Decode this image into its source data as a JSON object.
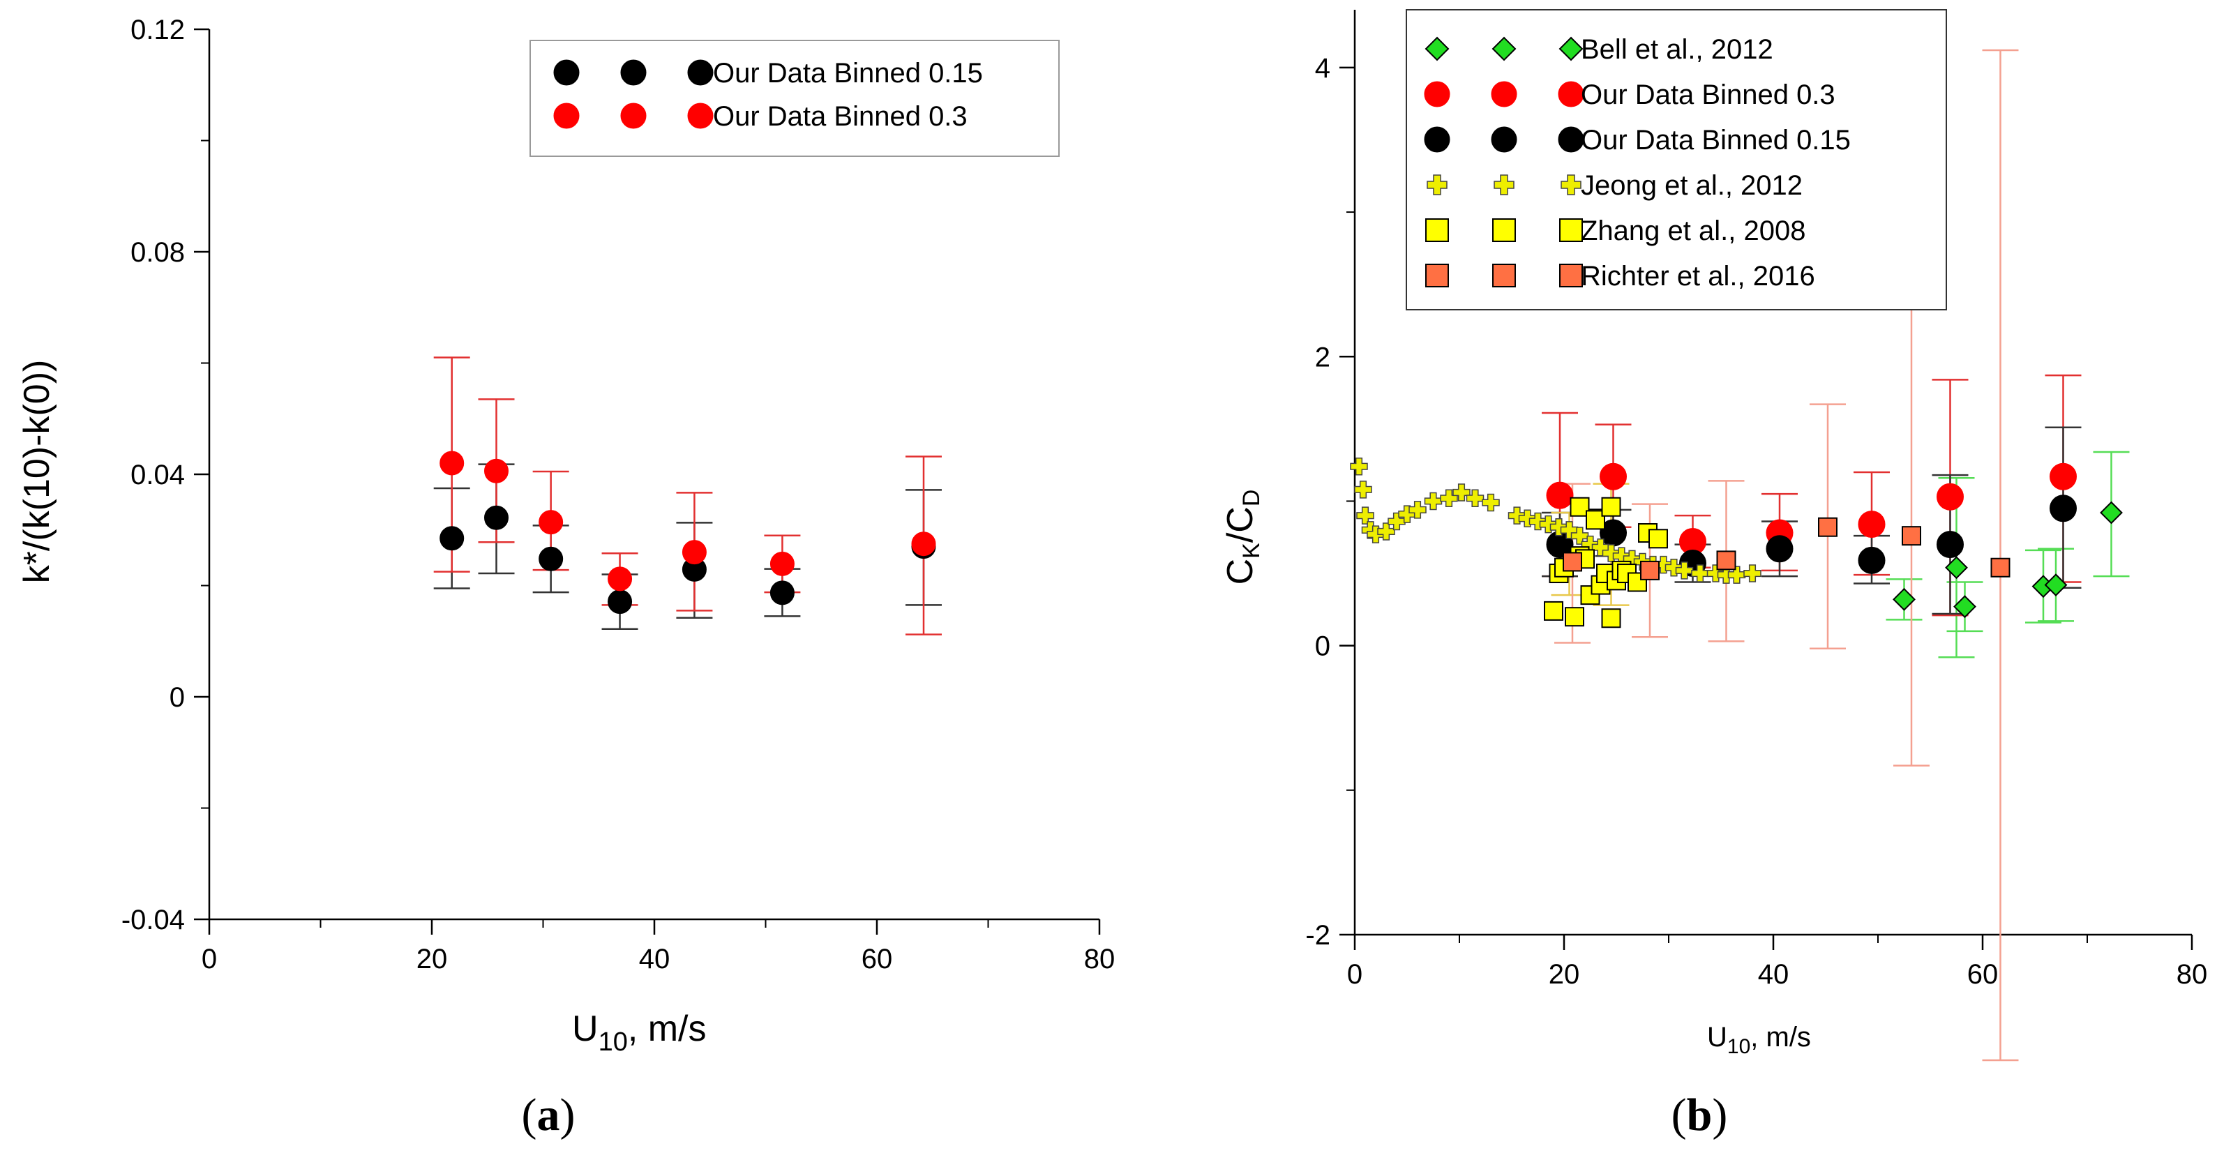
{
  "chart_data": [
    {
      "id": "a",
      "type": "scatter",
      "panel_label_open": "(",
      "panel_label_letter": "a",
      "panel_label_close": ")",
      "xlabel": "U10, m/s",
      "xlabel_main": "U",
      "xlabel_sub": "10",
      "xlabel_rest": ", m/s",
      "ylabel": "k*/(k(10)-k(0))",
      "xlim": [
        0,
        80
      ],
      "ylim": [
        -0.04,
        0.12
      ],
      "xticks": [
        0,
        20,
        40,
        60,
        80
      ],
      "yticks": [
        -0.04,
        0,
        0.04,
        0.08,
        0.12
      ],
      "xtick_labels": [
        "0",
        "20",
        "40",
        "60",
        "80"
      ],
      "ytick_labels": [
        "-0.04",
        "0",
        "0.04",
        "0.08",
        "0.12"
      ],
      "legend_position": "top-right",
      "series": [
        {
          "name": "Our Data Binned 0.15",
          "marker": "circle",
          "color": "#000000",
          "error_color": "#333333",
          "x": [
            21.8,
            25.8,
            30.7,
            36.9,
            43.6,
            51.5,
            64.2
          ],
          "y": [
            0.0285,
            0.0322,
            0.0248,
            0.0171,
            0.0229,
            0.0187,
            0.027
          ],
          "err_low": [
            0.0195,
            0.0222,
            0.0188,
            0.0122,
            0.0142,
            0.0145,
            0.0165
          ],
          "err_high": [
            0.0375,
            0.0418,
            0.0308,
            0.022,
            0.0313,
            0.023,
            0.0372
          ]
        },
        {
          "name": "Our Data Binned 0.3",
          "marker": "circle",
          "color": "#ff0000",
          "error_color": "#e23030",
          "x": [
            21.8,
            25.8,
            30.7,
            36.9,
            43.6,
            51.5,
            64.2
          ],
          "y": [
            0.042,
            0.0406,
            0.0314,
            0.0212,
            0.026,
            0.0239,
            0.0275
          ],
          "err_low": [
            0.0225,
            0.0278,
            0.0228,
            0.0165,
            0.0155,
            0.0188,
            0.0112
          ],
          "err_high": [
            0.061,
            0.0535,
            0.0405,
            0.0258,
            0.0367,
            0.029,
            0.0432
          ]
        }
      ]
    },
    {
      "id": "b",
      "type": "scatter",
      "panel_label_open": "(",
      "panel_label_letter": "b",
      "panel_label_close": ")",
      "xlabel": "U10, m/s",
      "xlabel_main": "U",
      "xlabel_sub": "10",
      "xlabel_rest": ", m/s",
      "ylabel": "CK/CD",
      "ylabel_c1": "C",
      "ylabel_s1": "K",
      "ylabel_slash": "/C",
      "ylabel_s2": "D",
      "xlim": [
        0,
        80
      ],
      "ylim": [
        -2,
        4.4
      ],
      "xticks": [
        0,
        20,
        40,
        60,
        80
      ],
      "yticks": [
        -2,
        0,
        2,
        4
      ],
      "xtick_labels": [
        "0",
        "20",
        "40",
        "60",
        "80"
      ],
      "ytick_labels": [
        "-2",
        "0",
        "2",
        "4"
      ],
      "legend_position": "top-left",
      "series": [
        {
          "name": "Bell et al., 2012",
          "marker": "diamond",
          "color": "#22dd22",
          "error_color": "#55dd55",
          "x": [
            52.5,
            57.5,
            58.3,
            65.8,
            67.0,
            72.3
          ],
          "y": [
            0.32,
            0.54,
            0.27,
            0.41,
            0.42,
            0.92
          ],
          "err_low": [
            0.18,
            -0.08,
            0.1,
            0.16,
            0.17,
            0.48
          ],
          "err_high": [
            0.46,
            1.16,
            0.44,
            0.66,
            0.67,
            1.34
          ]
        },
        {
          "name": "Our Data Binned 0.3",
          "marker": "circle",
          "color": "#ff0000",
          "error_color": "#e23030",
          "x": [
            19.6,
            24.7,
            32.3,
            40.6,
            49.4,
            56.9,
            67.7
          ],
          "y": [
            1.04,
            1.17,
            0.72,
            0.78,
            0.84,
            1.03,
            1.17
          ],
          "err_low": [
            0.48,
            0.82,
            0.54,
            0.52,
            0.49,
            0.21,
            0.44
          ],
          "err_high": [
            1.61,
            1.53,
            0.9,
            1.05,
            1.2,
            1.84,
            1.87
          ]
        },
        {
          "name": "Our Data Binned 0.15",
          "marker": "circle",
          "color": "#000000",
          "error_color": "#333333",
          "x": [
            19.6,
            24.7,
            32.3,
            40.6,
            49.4,
            56.9,
            67.7
          ],
          "y": [
            0.7,
            0.78,
            0.57,
            0.67,
            0.59,
            0.7,
            0.95
          ],
          "err_low": [
            0.48,
            0.62,
            0.44,
            0.48,
            0.43,
            0.22,
            0.4
          ],
          "err_high": [
            0.92,
            0.94,
            0.7,
            0.86,
            0.76,
            1.18,
            1.51
          ]
        },
        {
          "name": "Jeong et al., 2012",
          "marker": "cross",
          "color": "#eeee00",
          "x": [
            0.4,
            0.8,
            1.0,
            1.5,
            2.0,
            3.0,
            4.0,
            5.0,
            6.0,
            7.5,
            9.0,
            10.2,
            11.5,
            13.0,
            15.5,
            16.5,
            17.5,
            18.5,
            19.5,
            20.5,
            21.5,
            22.5,
            23.5,
            24.5,
            25.5,
            26.5,
            27.5,
            28.5,
            29.5,
            30.5,
            31.5,
            33.0,
            34.5,
            35.5,
            36.5,
            38.0
          ],
          "y": [
            1.24,
            1.08,
            0.9,
            0.8,
            0.77,
            0.79,
            0.86,
            0.91,
            0.94,
            1.0,
            1.02,
            1.06,
            1.02,
            0.99,
            0.9,
            0.88,
            0.86,
            0.84,
            0.82,
            0.8,
            0.76,
            0.7,
            0.68,
            0.64,
            0.62,
            0.6,
            0.58,
            0.56,
            0.56,
            0.54,
            0.52,
            0.5,
            0.5,
            0.49,
            0.49,
            0.5
          ]
        },
        {
          "name": "Zhang et al., 2008",
          "marker": "square",
          "color": "#ffff00",
          "x": [
            19.0,
            19.5,
            20.0,
            21.0,
            21.5,
            22.0,
            22.5,
            23.0,
            23.5,
            24.0,
            24.5,
            25.0,
            25.5,
            26.0,
            27.0,
            28.0,
            29.0,
            21.5,
            23.0,
            24.5
          ],
          "y": [
            0.24,
            0.5,
            0.54,
            0.2,
            0.62,
            0.6,
            0.35,
            0.88,
            0.42,
            0.5,
            0.19,
            0.45,
            0.52,
            0.5,
            0.44,
            0.78,
            0.74,
            0.96,
            0.87,
            0.96
          ],
          "error_color": "#e8c84a",
          "err_x": [
            20.5,
            24.5
          ],
          "err_low": [
            0.35,
            0.28
          ],
          "err_high": [
            0.92,
            1.12
          ]
        },
        {
          "name": "Richter et al., 2016",
          "marker": "square",
          "color": "#ff7043",
          "error_color": "#f4a090",
          "x": [
            20.8,
            28.2,
            35.5,
            45.2,
            53.2,
            61.7
          ],
          "y": [
            0.58,
            0.52,
            0.59,
            0.82,
            0.76,
            0.54
          ],
          "err_low": [
            0.02,
            0.06,
            0.03,
            -0.02,
            -0.83,
            -2.9
          ],
          "err_high": [
            1.12,
            0.98,
            1.14,
            1.67,
            2.35,
            4.12
          ]
        }
      ]
    }
  ]
}
